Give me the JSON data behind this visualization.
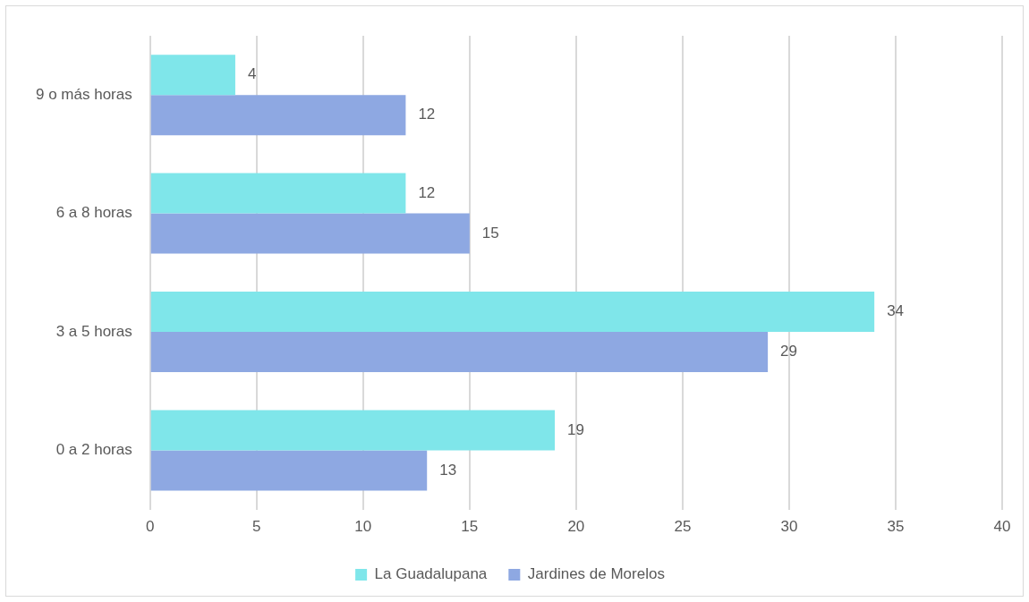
{
  "chart_data": {
    "type": "bar",
    "orientation": "horizontal",
    "categories": [
      "9 o más horas",
      "6 a 8 horas",
      "3 a 5 horas",
      "0 a 2 horas"
    ],
    "series": [
      {
        "name": "La Guadalupana",
        "color": "#7fe6ea",
        "values": [
          4,
          12,
          34,
          19
        ]
      },
      {
        "name": "Jardines de Morelos",
        "color": "#8ea8e2",
        "values": [
          12,
          15,
          29,
          13
        ]
      }
    ],
    "xlim": [
      0,
      40
    ],
    "xticks": [
      0,
      5,
      10,
      15,
      20,
      25,
      30,
      35,
      40
    ],
    "grid": "x",
    "legend": "bottom",
    "data_labels": true
  }
}
